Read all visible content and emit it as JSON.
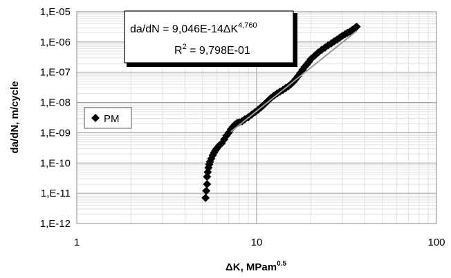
{
  "chart_data": {
    "type": "scatter",
    "xscale": "log",
    "yscale": "log",
    "xlim": [
      1,
      100
    ],
    "ylim": [
      1e-12,
      1e-05
    ],
    "grid": true,
    "legend_position": "left",
    "xlabel": "ΔK, MPam",
    "xlabel_sup": "0.5",
    "ylabel": "da/dN, m/cycle",
    "x_tick_labels": [
      "1",
      "10",
      "100"
    ],
    "y_tick_labels": [
      "1,E-12",
      "1,E-11",
      "1,E-10",
      "1,E-09",
      "1,E-08",
      "1,E-07",
      "1,E-06",
      "1,E-05"
    ],
    "annotation": {
      "equation_main": "da/dN = 9,046E-14ΔK",
      "equation_exp": "4,760",
      "r2_label": "R",
      "r2_sup": "2",
      "r2_value": " = 9,798E-01"
    },
    "series": [
      {
        "name": "PM",
        "color": "#000000",
        "marker": "diamond",
        "x": [
          5.2,
          5.25,
          5.3,
          5.3,
          5.35,
          5.4,
          5.45,
          5.5,
          5.6,
          5.7,
          5.8,
          5.9,
          6.0,
          6.2,
          6.4,
          6.6,
          6.8,
          7.0,
          7.2,
          7.4,
          7.6,
          7.8,
          8.0,
          8.3,
          8.6,
          9.0,
          9.4,
          9.8,
          10.2,
          10.6,
          11.0,
          11.5,
          12.0,
          12.5,
          13.0,
          13.5,
          14.0,
          14.5,
          15.0,
          15.5,
          16.0,
          16.5,
          17.0,
          17.5,
          18.0,
          18.5,
          19.0,
          19.5,
          20.0,
          21.0,
          22.0,
          23.0,
          24.0,
          25.0,
          26.0,
          27.0,
          28.0,
          29.0,
          30.0,
          31.0,
          32.0,
          33.0,
          34.0,
          35.0,
          35.5,
          36.0
        ],
        "y": [
          7e-12,
          1.2e-11,
          2e-11,
          3.5e-11,
          5e-11,
          7e-11,
          9e-11,
          1.1e-10,
          1.4e-10,
          1.8e-10,
          2.2e-10,
          2.6e-10,
          3e-10,
          3.8e-10,
          4.5e-10,
          6e-10,
          8e-10,
          1e-09,
          1.3e-09,
          1.6e-09,
          1.9e-09,
          2.1e-09,
          2.2e-09,
          2.4e-09,
          2.8e-09,
          3.3e-09,
          4e-09,
          4.8e-09,
          5.8e-09,
          7e-09,
          8.5e-09,
          1.1e-08,
          1.4e-08,
          1.7e-08,
          2e-08,
          2.3e-08,
          2.6e-08,
          3e-08,
          3.4e-08,
          4e-08,
          4.8e-08,
          6e-08,
          7.5e-08,
          9.5e-08,
          1.2e-07,
          1.5e-07,
          1.8e-07,
          2.2e-07,
          2.7e-07,
          3.5e-07,
          4.5e-07,
          5.5e-07,
          6.5e-07,
          7.8e-07,
          9e-07,
          1.05e-06,
          1.2e-06,
          1.4e-06,
          1.6e-06,
          1.8e-06,
          2e-06,
          2.2e-06,
          2.5e-06,
          2.8e-06,
          3e-06,
          3.2e-06
        ]
      }
    ],
    "fit_line": {
      "coefficient": 9.046e-14,
      "exponent": 4.76,
      "x_range": [
        7.2,
        36
      ],
      "color": "#9a9a9a"
    }
  }
}
